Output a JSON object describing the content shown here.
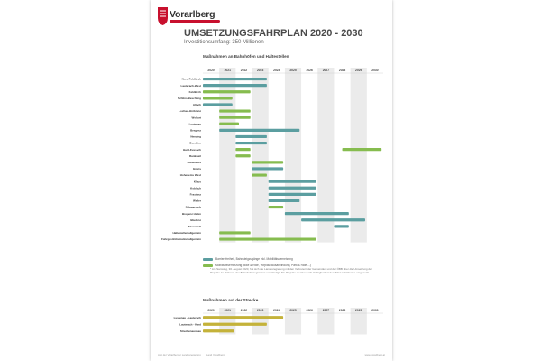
{
  "header": {
    "brand": "Vorarlberg",
    "title": "UMSETZUNGSFAHRPLAN 2020 - 2030",
    "subtitle": "Investitionsumfang: 350 Millionen"
  },
  "colors": {
    "brand_red": "#c8102e",
    "teal": "#5b9ea0",
    "green": "#86bc4f",
    "gold": "#c4b23a",
    "shade": "#ebebeb"
  },
  "chart_data": [
    {
      "type": "gantt",
      "title": "Maßnahmen an Bahnhöfen und Haltestellen",
      "years": [
        "2020",
        "2021",
        "2022",
        "2023",
        "2024",
        "2025",
        "2026",
        "2027",
        "2028",
        "2029",
        "2030"
      ],
      "rows": [
        {
          "label": "Nord-Feldkirch",
          "start": 2020,
          "end": 2023.9,
          "series": "teal"
        },
        {
          "label": "Lauterach-West",
          "start": 2020,
          "end": 2023.9,
          "series": "teal"
        },
        {
          "label": "Feldkirch",
          "start": 2020,
          "end": 2022.9,
          "series": "green"
        },
        {
          "label": "Schlins-Beschling",
          "start": 2020,
          "end": 2021.8,
          "series": "green"
        },
        {
          "label": "Altach",
          "start": 2020,
          "end": 2021.8,
          "series": "teal"
        },
        {
          "label": "Lochau-Hörbranz",
          "start": 2021,
          "end": 2022.9,
          "series": "green"
        },
        {
          "label": "Wolfurt",
          "start": 2021,
          "end": 2022.9,
          "series": "green"
        },
        {
          "label": "Lustenau",
          "start": 2021,
          "end": 2022.2,
          "series": "green"
        },
        {
          "label": "Bregenz",
          "start": 2021,
          "end": 2025.9,
          "series": "teal"
        },
        {
          "label": "Nenzing",
          "start": 2022,
          "end": 2023.9,
          "series": "teal"
        },
        {
          "label": "Dornbirn",
          "start": 2022,
          "end": 2023.9,
          "series": "teal"
        },
        {
          "label": "Hard-Fussach",
          "start": 2022,
          "end": 2022.9,
          "series": "green",
          "start2": 2028.5,
          "end2": 2030.9
        },
        {
          "label": "Rankweil",
          "start": 2022,
          "end": 2022.9,
          "series": "green"
        },
        {
          "label": "Hohenems",
          "start": 2023,
          "end": 2024.9,
          "series": "green"
        },
        {
          "label": "Götzis",
          "start": 2023,
          "end": 2024.9,
          "series": "teal"
        },
        {
          "label": "Hohenems West",
          "start": 2023,
          "end": 2023.9,
          "series": "green"
        },
        {
          "label": "Klaus",
          "start": 2024,
          "end": 2026.9,
          "series": "teal"
        },
        {
          "label": "Koblach",
          "start": 2024,
          "end": 2026.9,
          "series": "teal"
        },
        {
          "label": "Frastanz",
          "start": 2024,
          "end": 2026.9,
          "series": "teal"
        },
        {
          "label": "Weiler",
          "start": 2024,
          "end": 2025.9,
          "series": "teal"
        },
        {
          "label": "Schwarzach",
          "start": 2024,
          "end": 2024.9,
          "series": "green"
        },
        {
          "label": "Bregenz Hafen",
          "start": 2025,
          "end": 2028.9,
          "series": "teal"
        },
        {
          "label": "Bludenz",
          "start": 2026,
          "end": 2029.9,
          "series": "teal"
        },
        {
          "label": "Altenstadt",
          "start": 2028,
          "end": 2028.9,
          "series": "teal"
        },
        {
          "label": "Haltestellen allgemein",
          "start": 2021,
          "end": 2022.9,
          "series": "green"
        },
        {
          "label": "Fahrgastinformation allgemein",
          "start": 2021,
          "end": 2026.9,
          "series": "green"
        }
      ]
    },
    {
      "type": "gantt",
      "title": "Maßnahmen auf der Strecke",
      "years": [
        "2020",
        "2021",
        "2022",
        "2023",
        "2024",
        "2025",
        "2026",
        "2027",
        "2028",
        "2029",
        "2030"
      ],
      "rows": [
        {
          "label": "Lustenau - Lauterach",
          "start": 2020,
          "end": 2024.9,
          "series": "gold"
        },
        {
          "label": "Lauterach - Hard",
          "start": 2020,
          "end": 2023.9,
          "series": "gold"
        },
        {
          "label": "Streckenausbau",
          "start": 2020,
          "end": 2021.9,
          "series": "gold"
        }
      ]
    }
  ],
  "legend": [
    {
      "label": "Barrierefreiheit, Bahnsteigzugänge inkl. Mobilitätsvernetzung",
      "series": "teal"
    },
    {
      "label": "Mobilitätsvernetzung (Bike & Ride, Vorplatz/Busanbindung, Park & Ride ...)",
      "series": "green"
    }
  ],
  "footnote": "* Am Samstag, 30. August 2020, hat sich die Landesregierung mit den Vertretern der Gemeinden und der ÖBB über die Umsetzung der Projekte im Rahmen des Bahnhofsprogramms verständigt. Die Projekte werden nach Verfügbarkeit der Mittel schrittweise umgesetzt.",
  "footer": {
    "left": "Amt der Vorarlberger Landesregierung",
    "mid": "Land Vorarlberg",
    "right": "www.vorarlberg.at"
  }
}
